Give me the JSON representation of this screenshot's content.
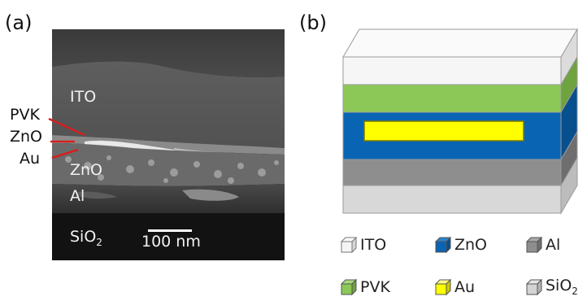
{
  "panels": {
    "a": {
      "label": "(a)"
    },
    "b": {
      "label": "(b)"
    }
  },
  "sem": {
    "layer_labels": {
      "ito": "ITO",
      "zno": "ZnO",
      "al": "Al",
      "sio2_base": "SiO",
      "sio2_sub": "2"
    },
    "scale_bar": "100 nm"
  },
  "callouts": {
    "pvk": "PVK",
    "zno": "ZnO",
    "au": "Au"
  },
  "legend": [
    {
      "key": "ito",
      "label": "ITO",
      "sub": "",
      "color": "#f4f4f4"
    },
    {
      "key": "zno",
      "label": "ZnO",
      "sub": "",
      "color": "#0a64b4"
    },
    {
      "key": "al",
      "label": "Al",
      "sub": "",
      "color": "#8e8e8e"
    },
    {
      "key": "pvk",
      "label": "PVK",
      "sub": "",
      "color": "#8cc857"
    },
    {
      "key": "au",
      "label": "Au",
      "sub": "",
      "color": "#ffff00"
    },
    {
      "key": "sio2",
      "label": "SiO",
      "sub": "2",
      "color": "#d4d4d4"
    }
  ],
  "colors": {
    "ito": "#f4f4f4",
    "pvk": "#8cc857",
    "zno": "#0a64b4",
    "au": "#ffff00",
    "al": "#8e8e8e",
    "sio2": "#d4d4d4",
    "callout_line": "#d42020"
  }
}
